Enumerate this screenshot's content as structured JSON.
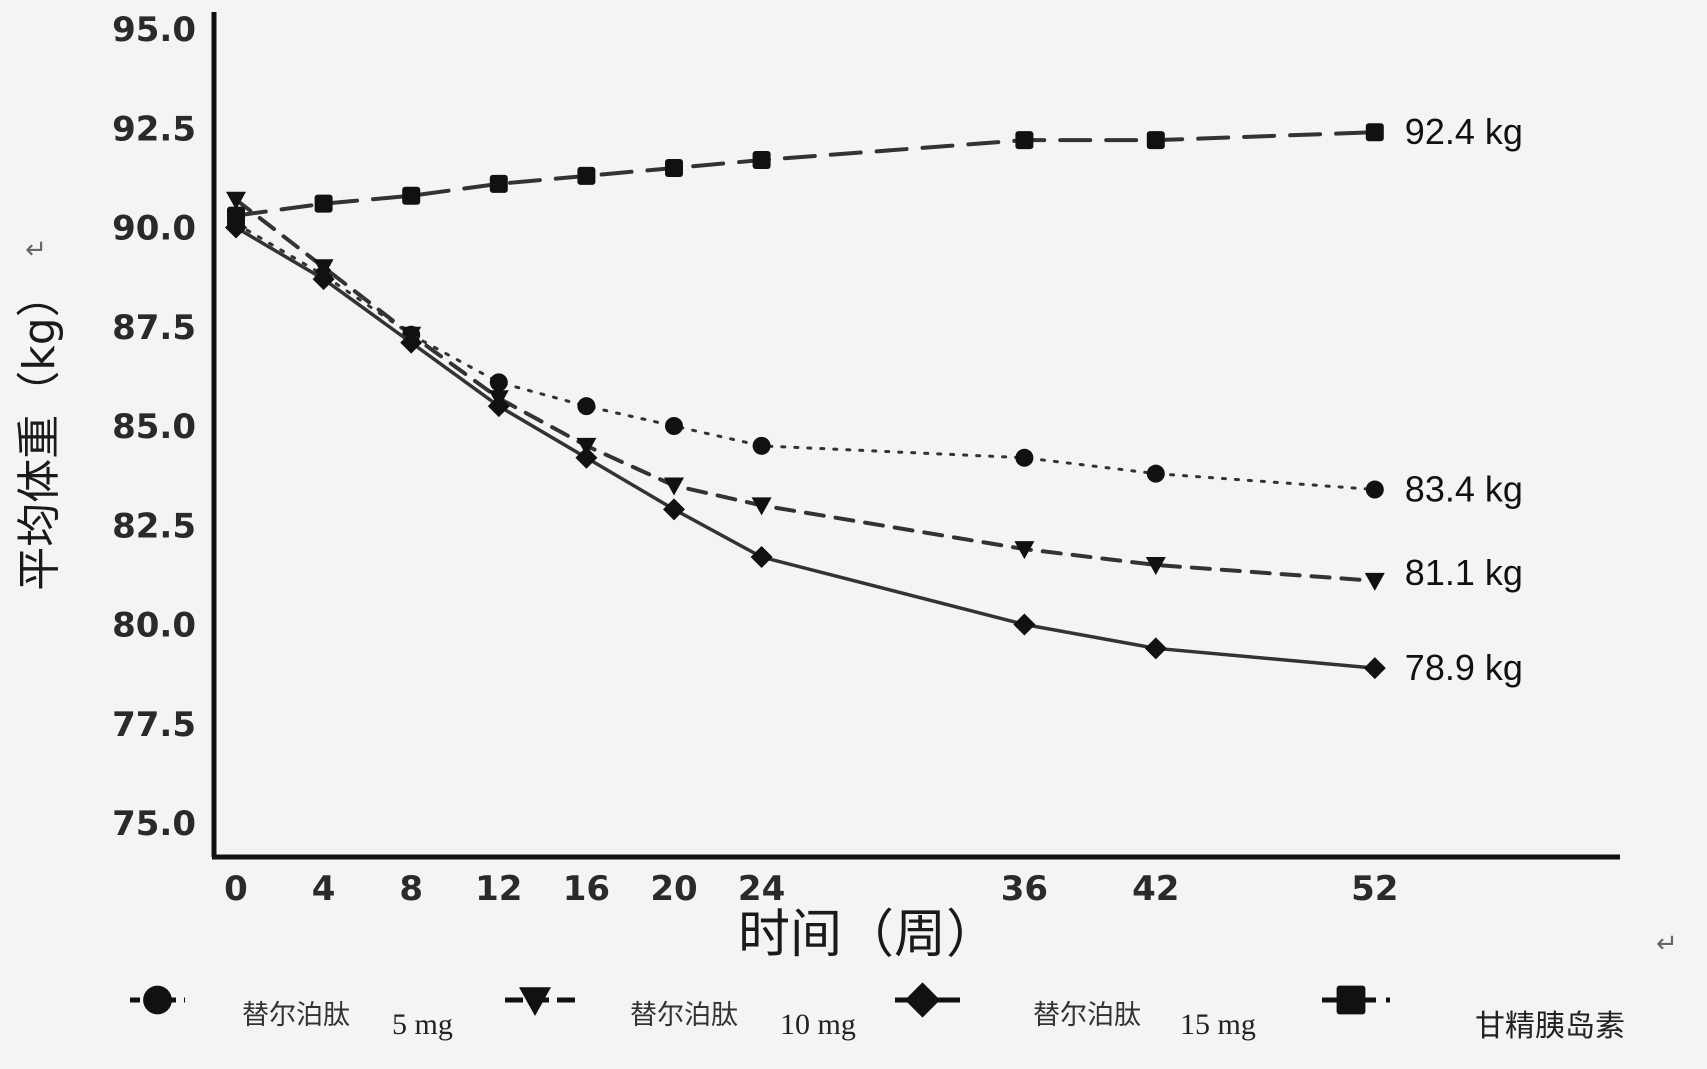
{
  "chart_data": {
    "type": "line",
    "title": "",
    "xlabel": "时间（周）",
    "ylabel": "平均体重（kg）",
    "ylim": [
      75.0,
      95.0
    ],
    "yticks": [
      "75.0",
      "77.5",
      "80.0",
      "82.5",
      "85.0",
      "87.5",
      "90.0",
      "92.5",
      "95.0"
    ],
    "x": [
      0,
      4,
      8,
      12,
      16,
      20,
      24,
      36,
      42,
      52
    ],
    "xtick_labels": [
      "0",
      "4",
      "8",
      "12",
      "16",
      "20",
      "24",
      "36",
      "42",
      "52"
    ],
    "series": [
      {
        "name": "替尔泊肽",
        "dose": "5 mg",
        "marker": "circle",
        "dash": "dotted",
        "color": "#333333",
        "values": [
          90.1,
          88.8,
          87.3,
          86.1,
          85.5,
          85.0,
          84.5,
          84.2,
          83.8,
          83.4
        ],
        "end_label": "83.4 kg"
      },
      {
        "name": "替尔泊肽",
        "dose": "10 mg",
        "marker": "triangle-down",
        "dash": "dashed",
        "color": "#333333",
        "values": [
          90.7,
          89.0,
          87.3,
          85.7,
          84.5,
          83.5,
          83.0,
          81.9,
          81.5,
          81.1
        ],
        "end_label": "81.1 kg"
      },
      {
        "name": "替尔泊肽",
        "dose": "15 mg",
        "marker": "diamond",
        "dash": "solid",
        "color": "#333333",
        "values": [
          90.0,
          88.7,
          87.1,
          85.5,
          84.2,
          82.9,
          81.7,
          80.0,
          79.4,
          78.9
        ],
        "end_label": "78.9 kg"
      },
      {
        "name": "甘精胰岛素",
        "dose": "",
        "marker": "square",
        "dash": "longdash",
        "color": "#333333",
        "values": [
          90.3,
          90.6,
          90.8,
          91.1,
          91.3,
          91.5,
          91.7,
          92.2,
          92.2,
          92.4
        ],
        "end_label": "92.4 kg"
      }
    ],
    "legend_position": "bottom",
    "grid": false
  }
}
